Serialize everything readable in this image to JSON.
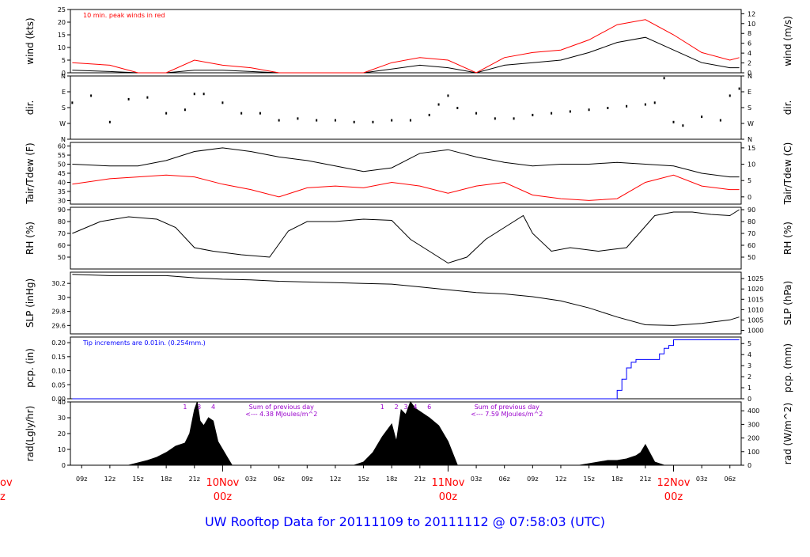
{
  "footer": {
    "title": "UW Rooftop Data for 20111109  to  20111112 @ 07:58:03  (UTC)",
    "color": "#0000ff"
  },
  "axis_colors": {
    "frame": "#000000",
    "day_label": "#ff0000",
    "note_blue": "#0000ff",
    "note_purple": "#9900cc"
  },
  "time_axis": {
    "hours": [
      "09z",
      "12z",
      "15z",
      "18z",
      "21z",
      "03z",
      "06z",
      "09z",
      "12z",
      "15z",
      "18z",
      "21z",
      "03z",
      "06z",
      "09z",
      "12z",
      "15z",
      "18z",
      "21z",
      "03z",
      "06z"
    ],
    "hour_positions_h": [
      0,
      3,
      6,
      9,
      12,
      18,
      21,
      24,
      27,
      30,
      33,
      36,
      42,
      45,
      48,
      51,
      54,
      57,
      60,
      66,
      69
    ],
    "days": [
      {
        "date": "10Nov",
        "zulu": "00z",
        "h": 15
      },
      {
        "date": "11Nov",
        "zulu": "00z",
        "h": 39
      },
      {
        "date": "12Nov",
        "zulu": "00z",
        "h": 63
      }
    ],
    "left_cut_date": "ov",
    "left_cut_zulu": "z"
  },
  "chart_data": [
    {
      "type": "line",
      "id": "wind",
      "ylabel": "wind (kts)",
      "ylabel_right": "wind (m/s)",
      "ylim": [
        0,
        25
      ],
      "yticks": [
        0,
        5,
        10,
        15,
        20,
        25
      ],
      "ylim_right": [
        0,
        12.86
      ],
      "yticks_right": [
        0,
        2,
        4,
        6,
        8,
        10,
        12
      ],
      "annotation": "10 min. peak winds in red",
      "series": [
        {
          "name": "wind speed",
          "color": "#000000",
          "x": [
            -1,
            3,
            6,
            9,
            12,
            15,
            18,
            21,
            24,
            27,
            30,
            33,
            36,
            39,
            42,
            45,
            48,
            51,
            54,
            57,
            60,
            63,
            66,
            69,
            70
          ],
          "values": [
            1,
            0.5,
            0,
            0,
            1,
            1,
            0.5,
            0,
            0,
            0,
            0,
            1.5,
            3,
            2,
            0,
            3,
            4,
            5,
            8,
            12,
            14,
            9,
            4,
            2,
            2
          ]
        },
        {
          "name": "10 min. peak winds",
          "color": "#ff0000",
          "x": [
            -1,
            3,
            6,
            9,
            12,
            15,
            18,
            21,
            24,
            27,
            30,
            33,
            36,
            39,
            42,
            45,
            48,
            51,
            54,
            57,
            60,
            63,
            66,
            69,
            70
          ],
          "values": [
            4,
            3,
            0,
            0,
            5,
            3,
            2,
            0,
            0,
            0,
            0,
            4,
            6,
            5,
            0,
            6,
            8,
            9,
            13,
            19,
            21,
            15,
            8,
            5,
            6
          ]
        }
      ]
    },
    {
      "type": "scatter",
      "id": "dir",
      "ylabel": "dir.",
      "ylabel_right": "dir.",
      "yticks_labels": [
        "N",
        "W",
        "S",
        "E",
        "N"
      ],
      "ylim": [
        0,
        360
      ],
      "series": [
        {
          "name": "wind direction",
          "color": "#000000",
          "x": [
            -1,
            1,
            3,
            5,
            7,
            9,
            11,
            12,
            13,
            15,
            17,
            19,
            21,
            23,
            25,
            27,
            29,
            31,
            33,
            35,
            37,
            38,
            39,
            40,
            42,
            44,
            46,
            48,
            50,
            52,
            54,
            56,
            58,
            60,
            61,
            62,
            63,
            64,
            66,
            68,
            69,
            70
          ],
          "values": [
            210,
            250,
            100,
            230,
            240,
            150,
            170,
            260,
            260,
            210,
            150,
            150,
            110,
            120,
            110,
            110,
            100,
            100,
            110,
            110,
            140,
            200,
            250,
            180,
            150,
            120,
            120,
            140,
            150,
            160,
            170,
            180,
            190,
            200,
            210,
            350,
            100,
            80,
            130,
            110,
            250,
            290
          ]
        }
      ]
    },
    {
      "type": "line",
      "id": "temp",
      "ylabel": "Tair/Tdew (F)",
      "ylabel_right": "Tair/Tdew (C)",
      "ylim": [
        28,
        62
      ],
      "yticks": [
        30,
        35,
        40,
        45,
        50,
        55,
        60
      ],
      "ylim_right": [
        -2.22,
        16.67
      ],
      "yticks_right": [
        0,
        5,
        10,
        15
      ],
      "series": [
        {
          "name": "Tair",
          "color": "#000000",
          "x": [
            -1,
            3,
            6,
            9,
            12,
            15,
            18,
            21,
            24,
            27,
            30,
            33,
            36,
            39,
            42,
            45,
            48,
            51,
            54,
            57,
            60,
            63,
            66,
            69,
            70
          ],
          "values": [
            50,
            49,
            49,
            52,
            57,
            59,
            57,
            54,
            52,
            49,
            46,
            48,
            56,
            58,
            54,
            51,
            49,
            50,
            50,
            51,
            50,
            49,
            45,
            43,
            43
          ]
        },
        {
          "name": "Tdew",
          "color": "#ff0000",
          "x": [
            -1,
            3,
            6,
            9,
            12,
            15,
            18,
            21,
            24,
            27,
            30,
            33,
            36,
            39,
            42,
            45,
            48,
            51,
            54,
            57,
            60,
            63,
            66,
            69,
            70
          ],
          "values": [
            39,
            42,
            43,
            44,
            43,
            39,
            36,
            32,
            37,
            38,
            37,
            40,
            38,
            34,
            38,
            40,
            33,
            31,
            30,
            31,
            40,
            44,
            38,
            36,
            36
          ]
        }
      ]
    },
    {
      "type": "line",
      "id": "rh",
      "ylabel": "RH (%)",
      "ylabel_right": "RH (%)",
      "ylim": [
        40,
        92
      ],
      "yticks": [
        50,
        60,
        70,
        80,
        90
      ],
      "series": [
        {
          "name": "RH",
          "color": "#000000",
          "x": [
            -1,
            2,
            5,
            8,
            10,
            12,
            14,
            17,
            20,
            22,
            24,
            27,
            30,
            33,
            35,
            37,
            39,
            41,
            43,
            45,
            47,
            48,
            50,
            52,
            55,
            58,
            61,
            63,
            65,
            67,
            69,
            70
          ],
          "values": [
            70,
            80,
            84,
            82,
            75,
            58,
            55,
            52,
            50,
            72,
            80,
            80,
            82,
            81,
            65,
            55,
            45,
            50,
            65,
            75,
            85,
            70,
            55,
            58,
            55,
            58,
            85,
            88,
            88,
            86,
            85,
            90
          ]
        }
      ]
    },
    {
      "type": "line",
      "id": "slp",
      "ylabel": "SLP (inHg)",
      "ylabel_right": "SLP (hPa)",
      "ylim": [
        29.48,
        30.36
      ],
      "yticks": [
        29.6,
        29.8,
        30.0,
        30.2
      ],
      "ylim_right": [
        998.3,
        1028.1
      ],
      "yticks_right": [
        1000,
        1005,
        1010,
        1015,
        1020,
        1025
      ],
      "series": [
        {
          "name": "SLP",
          "color": "#000000",
          "x": [
            -1,
            3,
            6,
            9,
            12,
            15,
            18,
            21,
            24,
            27,
            30,
            33,
            36,
            39,
            42,
            45,
            48,
            51,
            54,
            57,
            60,
            63,
            66,
            69,
            70
          ],
          "values": [
            30.33,
            30.31,
            30.31,
            30.31,
            30.28,
            30.26,
            30.25,
            30.23,
            30.22,
            30.21,
            30.2,
            30.19,
            30.15,
            30.11,
            30.07,
            30.05,
            30.01,
            29.95,
            29.85,
            29.72,
            29.61,
            29.6,
            29.63,
            29.68,
            29.72
          ]
        }
      ]
    },
    {
      "type": "line",
      "id": "pcp",
      "ylabel": "pcp. (in)",
      "ylabel_right": "pcp. (mm)",
      "ylim": [
        0,
        0.22
      ],
      "yticks": [
        0.0,
        0.05,
        0.1,
        0.15,
        0.2
      ],
      "yticks_labels": [
        "0.00",
        "0.05",
        "0.10",
        "0.15",
        "0.20"
      ],
      "ylim_right": [
        0,
        5.59
      ],
      "yticks_right": [
        0,
        1,
        2,
        3,
        4,
        5
      ],
      "annotation": "Tip increments are 0.01in. (0.254mm.)",
      "series": [
        {
          "name": "precipitation",
          "color": "#0000ff",
          "x": [
            -1,
            56.5,
            57,
            57.5,
            58,
            58.5,
            59,
            60,
            61,
            61.5,
            62,
            62.5,
            63,
            64,
            66,
            70
          ],
          "values": [
            0,
            0,
            0.03,
            0.07,
            0.11,
            0.13,
            0.14,
            0.14,
            0.14,
            0.16,
            0.18,
            0.19,
            0.21,
            0.21,
            0.21,
            0.21
          ]
        }
      ]
    },
    {
      "type": "area",
      "id": "rad",
      "ylabel": "rad(Lgly/hr)",
      "ylabel_right": "rad (W/m^2)",
      "ylim": [
        0,
        40
      ],
      "yticks": [
        0,
        10,
        20,
        30,
        40
      ],
      "ylim_right": [
        0,
        465
      ],
      "yticks_right": [
        0,
        100,
        200,
        300,
        400
      ],
      "series": [
        {
          "name": "radiation",
          "color": "#000000",
          "x": [
            5,
            7,
            8,
            9,
            9.5,
            10,
            11,
            11.5,
            12,
            12.3,
            12.6,
            13,
            13.5,
            14,
            14.5,
            15,
            15.5,
            16,
            29,
            30,
            31,
            32,
            32.5,
            33,
            33.5,
            34,
            34.5,
            35,
            35.5,
            36,
            37,
            38,
            39,
            40,
            53,
            54,
            55,
            56,
            57,
            58,
            59,
            59.5,
            60,
            61,
            62
          ],
          "values": [
            0,
            3,
            5,
            8,
            10,
            12,
            14,
            20,
            35,
            40,
            28,
            25,
            30,
            28,
            15,
            10,
            5,
            0,
            0,
            2,
            8,
            18,
            22,
            26,
            15,
            35,
            32,
            40,
            36,
            34,
            30,
            25,
            15,
            0,
            0,
            1,
            2,
            3,
            3,
            4,
            6,
            8,
            13,
            2,
            0
          ]
        }
      ],
      "annotations": [
        {
          "text": "Sum of previous day",
          "h": 20
        },
        {
          "text": "<--- 4.38 MJoules/m^2",
          "h": 20
        },
        {
          "text": "Sum of previous day",
          "h": 44
        },
        {
          "text": "<--- 7.59 MJoules/m^2",
          "h": 44
        }
      ],
      "hour_markers": [
        {
          "text": "1",
          "h": 11
        },
        {
          "text": "3",
          "h": 12.5
        },
        {
          "text": "4",
          "h": 14
        },
        {
          "text": "1",
          "h": 32
        },
        {
          "text": "2",
          "h": 33.5
        },
        {
          "text": "3",
          "h": 34.5
        },
        {
          "text": "4",
          "h": 35.5
        },
        {
          "text": "6",
          "h": 37
        }
      ]
    }
  ]
}
